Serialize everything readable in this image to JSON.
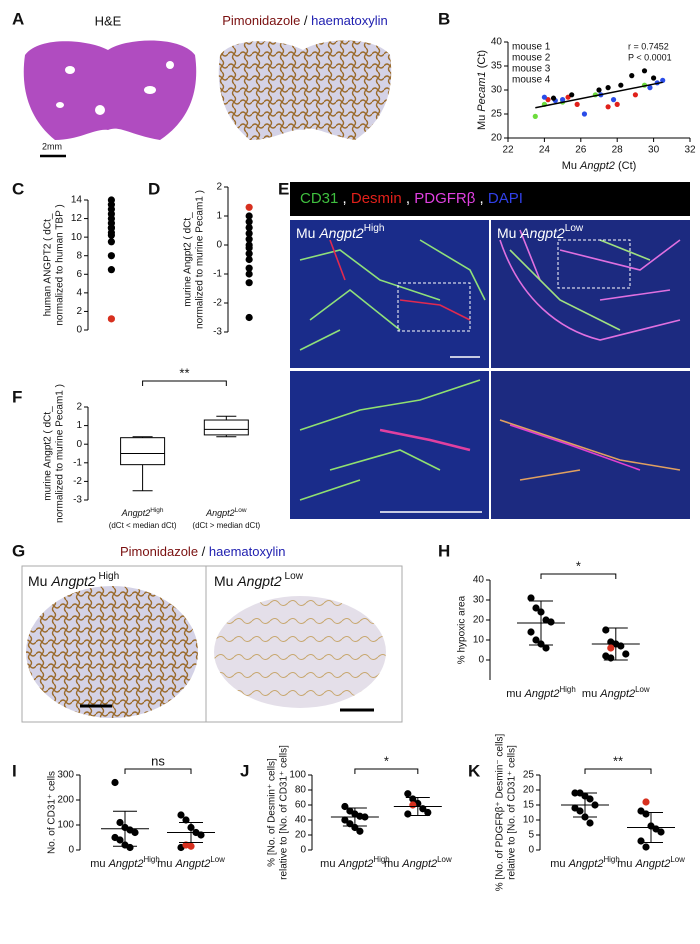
{
  "panels": [
    "A",
    "B",
    "C",
    "D",
    "E",
    "F",
    "G",
    "H",
    "I",
    "J",
    "K"
  ],
  "images": {
    "A": {
      "left_title": "H&E",
      "stain": "Pimonidazole",
      "separator": " / ",
      "counterstain": "haematoxylin",
      "scale": "2mm"
    },
    "E": {
      "channels": [
        {
          "label": "CD31",
          "color": "#3fbf3f"
        },
        {
          "label": "Desmin",
          "color": "#e0201a"
        },
        {
          "label": "PDGFRβ",
          "color": "#e040e0"
        },
        {
          "label": "DAPI",
          "color": "#3040e8"
        }
      ],
      "separator": " , ",
      "left": {
        "prefix": "Mu ",
        "gene": "Angpt2",
        "sup": "High"
      },
      "right": {
        "prefix": "Mu ",
        "gene": "Angpt2",
        "sup": "Low"
      }
    },
    "G": {
      "stain": "Pimonidazole",
      "separator": " / ",
      "counterstain": "haematoxylin",
      "left": {
        "prefix": "Mu ",
        "gene": "Angpt2",
        "sup": " High"
      },
      "right": {
        "prefix": "Mu ",
        "gene": "Angpt2",
        "sup": " Low"
      }
    }
  },
  "chart_data": [
    {
      "type": "scatter",
      "xlabel": {
        "prefix": "Mu ",
        "gene": "Angpt2",
        "suffix": " (Ct)"
      },
      "ylabel": {
        "prefix": "Mu ",
        "gene": "Pecam1",
        "suffix": " (Ct)"
      },
      "xlim": [
        22,
        32
      ],
      "xticks": [
        22,
        24,
        26,
        28,
        30,
        32
      ],
      "ylim": [
        20,
        40
      ],
      "yticks": [
        20,
        25,
        30,
        35,
        40
      ],
      "annotations": [
        "r =  0.7452",
        "P < 0.0001"
      ],
      "fit": {
        "x": [
          23.5,
          30.5
        ],
        "y": [
          26.3,
          31.6
        ]
      },
      "series": [
        {
          "name": "mouse 1",
          "color": "#6ddc3c",
          "x": [
            23.5,
            24,
            25,
            26.8,
            29.5
          ],
          "y": [
            24.5,
            27,
            27.5,
            29,
            31
          ]
        },
        {
          "name": "mouse 2",
          "color": "#e0201a",
          "x": [
            24.2,
            25.3,
            25.8,
            27.5,
            28,
            29
          ],
          "y": [
            28,
            28.5,
            27,
            26.5,
            27,
            29
          ]
        },
        {
          "name": "mouse 3",
          "color": "#2a4ce8",
          "x": [
            24,
            24.6,
            25,
            26.2,
            27.1,
            27.8,
            29.8,
            30.2,
            30.5
          ],
          "y": [
            28.5,
            27.8,
            28,
            25,
            29,
            28,
            30.5,
            31.5,
            32
          ]
        },
        {
          "name": "mouse 4",
          "color": "#000000",
          "x": [
            24.5,
            25.5,
            27,
            27.5,
            28.2,
            28.8,
            29.5,
            30
          ],
          "y": [
            28.3,
            29,
            30,
            30.5,
            31,
            33,
            34,
            32.5
          ]
        }
      ]
    },
    {
      "type": "dotplot",
      "ylabel": [
        "human ANGPT2 ( dCt_",
        "normalized to human TBP )"
      ],
      "ylim": [
        0,
        14
      ],
      "yticks": [
        0,
        2,
        4,
        6,
        8,
        10,
        12,
        14
      ],
      "color": "#000000",
      "highlight_color": "#d7301f",
      "groups": [
        {
          "values": [
            14,
            13.5,
            13,
            12.5,
            12,
            11.5,
            11,
            11,
            10.5,
            10.2,
            9.5,
            8,
            6.5
          ],
          "highlighted_values": [
            1.2
          ]
        }
      ]
    },
    {
      "type": "dotplot",
      "ylabel": [
        "murine Angpt2 ( dCt_",
        "normalized to murine Pecam1 )"
      ],
      "ylim": [
        -3,
        2
      ],
      "yticks": [
        -3,
        -2,
        -1,
        0,
        1,
        2
      ],
      "color": "#000000",
      "highlight_color": "#d7301f",
      "groups": [
        {
          "values": [
            1,
            0.8,
            0.6,
            0.4,
            0.2,
            0,
            -0.1,
            -0.3,
            -0.5,
            -0.8,
            -1,
            -1.3,
            -2.5
          ],
          "highlighted_values": [
            1.3
          ]
        }
      ]
    },
    {
      "type": "box",
      "ylabel": [
        "murine Angpt2 ( dCt_",
        "normalized to murine Pecam1 )"
      ],
      "ylim": [
        -3,
        2
      ],
      "yticks": [
        -3,
        -2,
        -1,
        0,
        1,
        2
      ],
      "significance": "**",
      "groups": [
        {
          "name": {
            "gene": "Angpt2",
            "sup": "High"
          },
          "note": "(dCt < median dCt)",
          "min": -2.5,
          "q1": -1.1,
          "median": -0.5,
          "q3": 0.35,
          "max": 0.4
        },
        {
          "name": {
            "gene": "Angpt2",
            "sup": "Low"
          },
          "note": "(dCt > median dCt)",
          "min": 0.4,
          "q1": 0.5,
          "median": 0.8,
          "q3": 1.3,
          "max": 1.5
        }
      ]
    },
    {
      "type": "dotplot",
      "ylabel": [
        "% hypoxic area"
      ],
      "ylim": [
        -10,
        40
      ],
      "yticks": [
        0,
        10,
        20,
        30,
        40
      ],
      "significance": "*",
      "color": "#000000",
      "highlight_color": "#d7301f",
      "groups": [
        {
          "name": {
            "prefix": "mu ",
            "gene": "Angpt2",
            "sup": "High"
          },
          "values": [
            31,
            26,
            24,
            20,
            19,
            14,
            10,
            8,
            6
          ],
          "highlighted_values": [],
          "mean": 18.5,
          "sd": 11
        },
        {
          "name": {
            "prefix": "mu ",
            "gene": "Angpt2",
            "sup": "Low"
          },
          "values": [
            15,
            9,
            8,
            7,
            3,
            2,
            1
          ],
          "highlighted_values": [
            6
          ],
          "mean": 8,
          "sd": 8
        }
      ]
    },
    {
      "type": "dotplot",
      "ylabel": [
        "No. of CD31⁺ cells"
      ],
      "ylim": [
        0,
        300
      ],
      "yticks": [
        0,
        100,
        200,
        300
      ],
      "significance": "ns",
      "color": "#000000",
      "highlight_color": "#d7301f",
      "groups": [
        {
          "name": {
            "prefix": "mu ",
            "gene": "Angpt2",
            "sup": "High"
          },
          "values": [
            270,
            110,
            90,
            80,
            70,
            50,
            40,
            20,
            10
          ],
          "highlighted_values": [],
          "mean": 85,
          "sd": 70
        },
        {
          "name": {
            "prefix": "mu ",
            "gene": "Angpt2",
            "sup": "Low"
          },
          "values": [
            140,
            120,
            90,
            70,
            60,
            10
          ],
          "highlighted_values": [
            20,
            15
          ],
          "mean": 70,
          "sd": 40
        }
      ]
    },
    {
      "type": "dotplot",
      "ylabel": [
        "% [No. of Desmin⁺ cells]",
        "relative to [No. of CD31⁺ cells]"
      ],
      "ylim": [
        0,
        100
      ],
      "yticks": [
        0,
        20,
        40,
        60,
        80,
        100
      ],
      "significance": "*",
      "color": "#000000",
      "highlight_color": "#d7301f",
      "groups": [
        {
          "name": {
            "prefix": "mu ",
            "gene": "Angpt2",
            "sup": "High"
          },
          "values": [
            58,
            52,
            48,
            45,
            44,
            40,
            35,
            30,
            25
          ],
          "highlighted_values": [],
          "mean": 44,
          "sd": 12
        },
        {
          "name": {
            "prefix": "mu ",
            "gene": "Angpt2",
            "sup": "Low"
          },
          "values": [
            75,
            68,
            62,
            55,
            50,
            48
          ],
          "highlighted_values": [
            60
          ],
          "mean": 58,
          "sd": 12
        }
      ]
    },
    {
      "type": "dotplot",
      "ylabel": [
        "% [No. of PDGFRβ⁺ Desmin⁻ cells]",
        "relative to [No. of CD31⁺ cells]"
      ],
      "ylim": [
        0,
        25
      ],
      "yticks": [
        0,
        5,
        10,
        15,
        20,
        25
      ],
      "significance": "**",
      "color": "#000000",
      "highlight_color": "#d7301f",
      "groups": [
        {
          "name": {
            "prefix": "mu ",
            "gene": "Angpt2",
            "sup": "High"
          },
          "values": [
            19,
            19,
            18,
            17,
            15,
            14,
            13,
            11,
            9
          ],
          "highlighted_values": [],
          "mean": 15,
          "sd": 4
        },
        {
          "name": {
            "prefix": "mu ",
            "gene": "Angpt2",
            "sup": "Low"
          },
          "values": [
            13,
            12,
            8,
            7,
            6,
            3,
            1
          ],
          "highlighted_values": [
            16
          ],
          "mean": 7.5,
          "sd": 5
        }
      ]
    }
  ]
}
